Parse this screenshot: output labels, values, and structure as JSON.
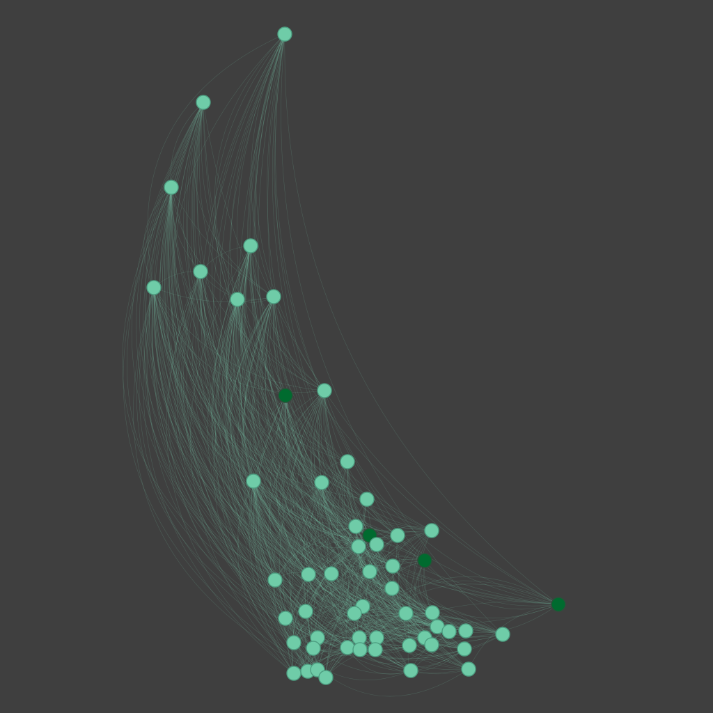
{
  "graph": {
    "colors": {
      "background": "#3f3f3f",
      "edge": "#7fd6b4",
      "node_fill": "#6fcca8",
      "node_stroke": "#4e9f82",
      "highlight_fill": "#006b2f",
      "highlight_stroke": "#2c4f3a"
    },
    "node_count": 65,
    "highlighted_node_count": 4
  }
}
